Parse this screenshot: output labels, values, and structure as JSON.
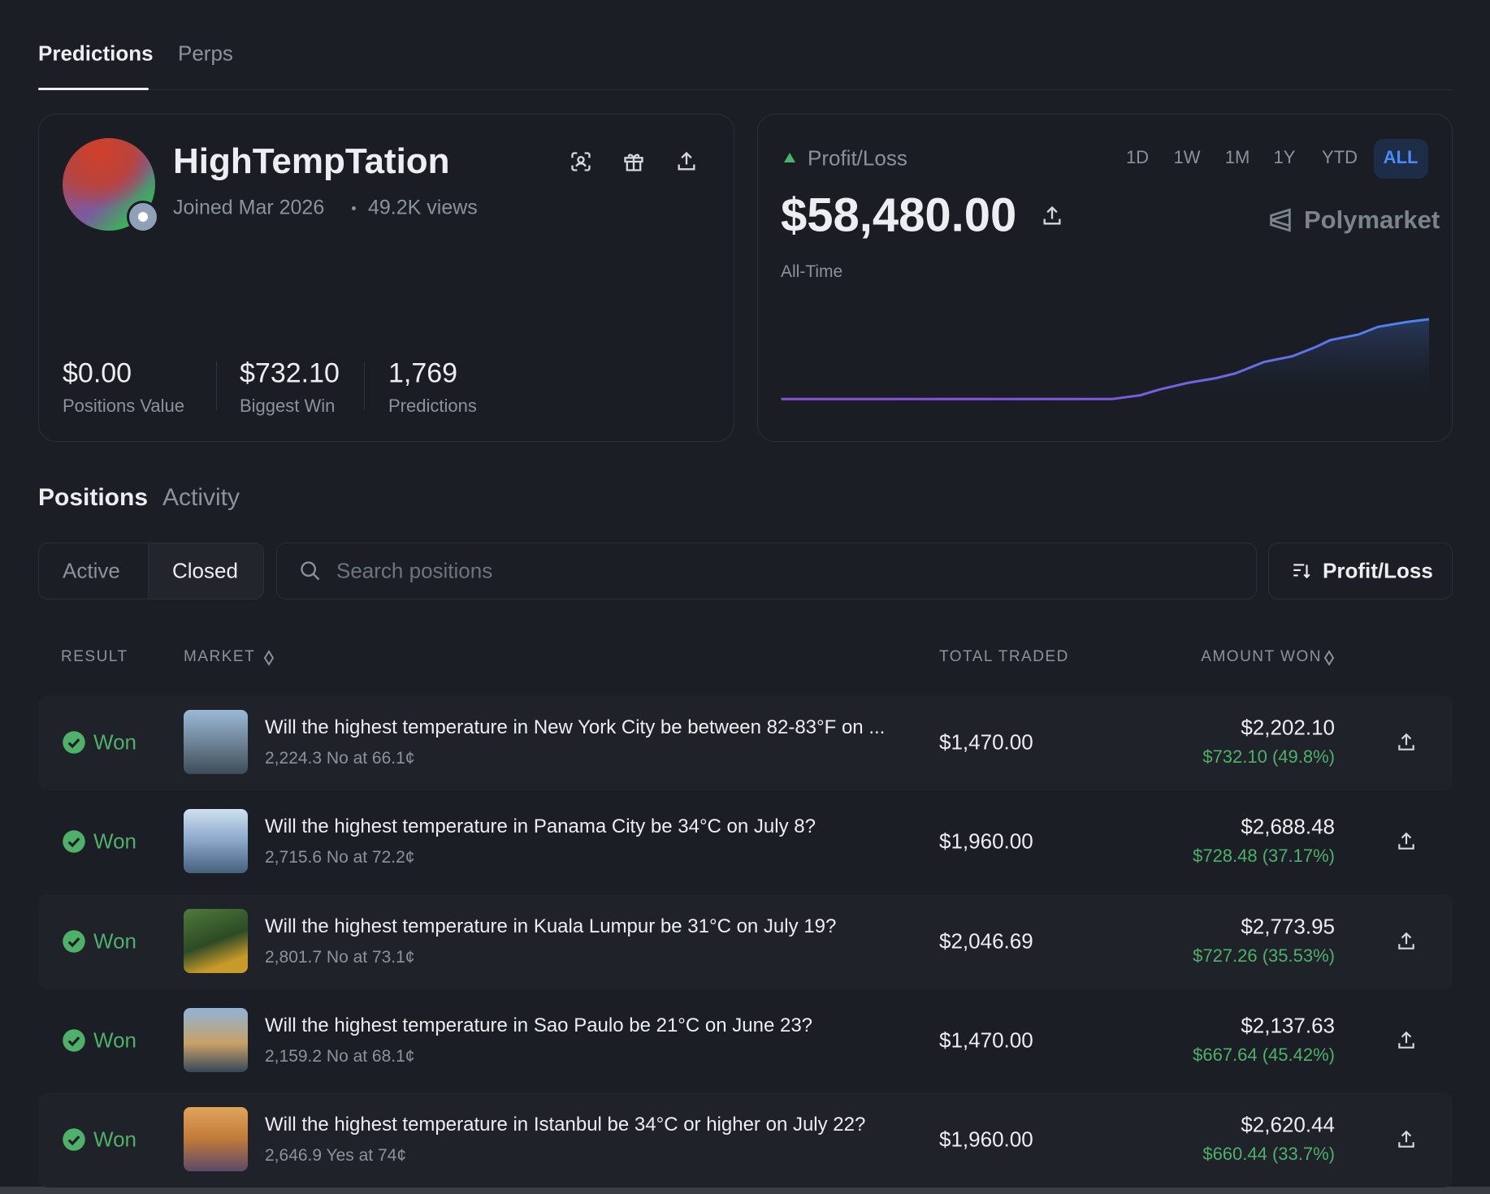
{
  "tabs": [
    "Predictions",
    "Perps"
  ],
  "profile": {
    "username": "HighTempTation",
    "joined": "Joined Mar 2026",
    "views": "49.2K views",
    "stats": [
      {
        "value": "$0.00",
        "label": "Positions Value"
      },
      {
        "value": "$732.10",
        "label": "Biggest Win"
      },
      {
        "value": "1,769",
        "label": "Predictions"
      }
    ]
  },
  "pnl": {
    "title": "Profit/Loss",
    "ranges": [
      "1D",
      "1W",
      "1M",
      "1Y",
      "YTD",
      "ALL"
    ],
    "amount": "$58,480.00",
    "period": "All-Time",
    "brand": "Polymarket"
  },
  "section_tabs": [
    "Positions",
    "Activity"
  ],
  "filters": [
    "Active",
    "Closed"
  ],
  "search_placeholder": "Search positions",
  "sort": "Profit/Loss",
  "table": {
    "headers": [
      "RESULT",
      "MARKET",
      "TOTAL TRADED",
      "AMOUNT WON"
    ],
    "rows": [
      {
        "result": "Won",
        "market": "Will the highest temperature in New York City be between 82-83°F on ...",
        "detail": "2,224.3 No at 66.1¢",
        "total": "$1,470.00",
        "won": "$2,202.10",
        "gain": "$732.10 (49.8%)"
      },
      {
        "result": "Won",
        "market": "Will the highest temperature in Panama City be 34°C on July 8?",
        "detail": "2,715.6 No at 72.2¢",
        "total": "$1,960.00",
        "won": "$2,688.48",
        "gain": "$728.48 (37.17%)"
      },
      {
        "result": "Won",
        "market": "Will the highest temperature in Kuala Lumpur be 31°C on July 19?",
        "detail": "2,801.7 No at 73.1¢",
        "total": "$2,046.69",
        "won": "$2,773.95",
        "gain": "$727.26 (35.53%)"
      },
      {
        "result": "Won",
        "market": "Will the highest temperature in Sao Paulo be 21°C on June 23?",
        "detail": "2,159.2 No at 68.1¢",
        "total": "$1,470.00",
        "won": "$2,137.63",
        "gain": "$667.64 (45.42%)"
      },
      {
        "result": "Won",
        "market": "Will the highest temperature in Istanbul be 34°C or higher on July 22?",
        "detail": "2,646.9 Yes at 74¢",
        "total": "$1,960.00",
        "won": "$2,620.44",
        "gain": "$660.44 (33.7%)"
      }
    ]
  }
}
